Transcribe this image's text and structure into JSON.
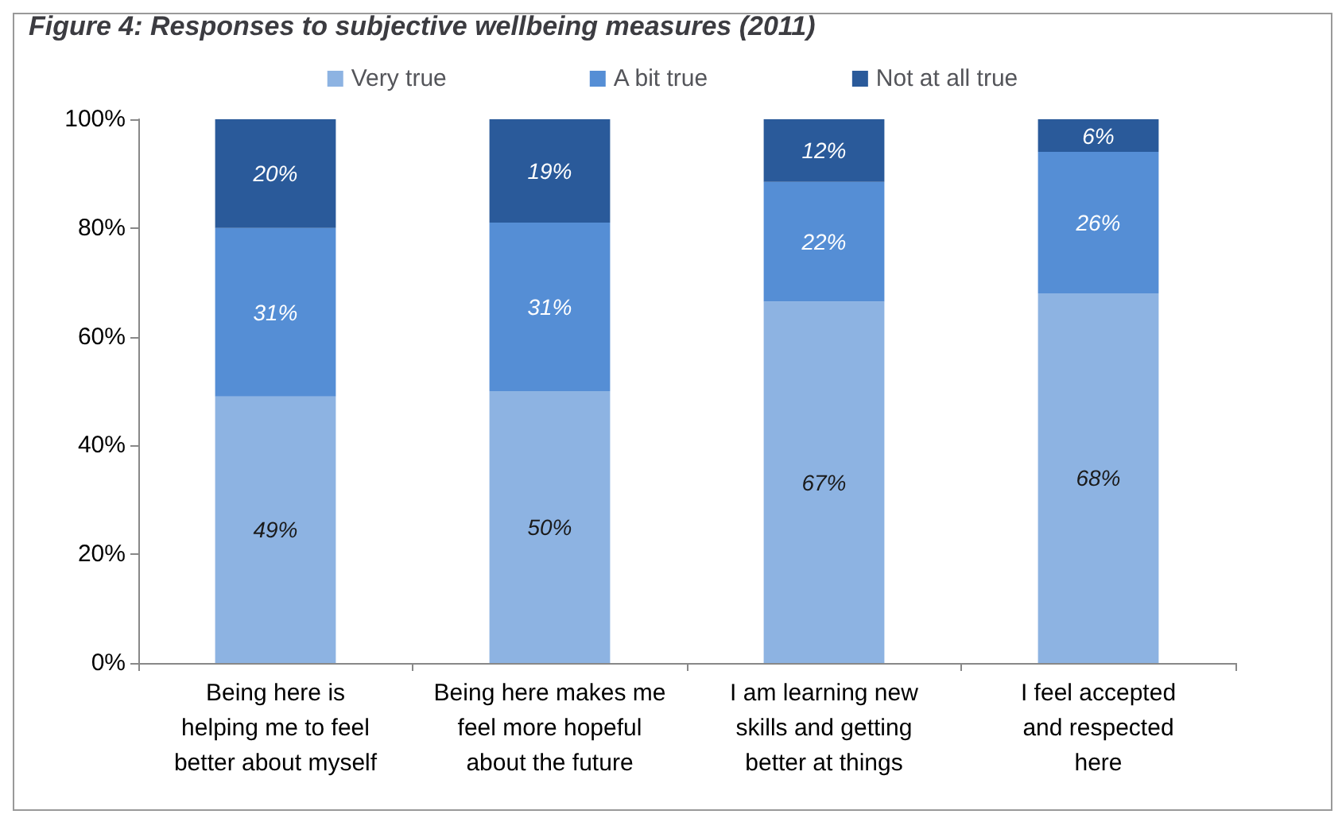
{
  "chart_data": {
    "type": "bar",
    "stacked": true,
    "title": "Figure 4: Responses to subjective wellbeing measures (2011)",
    "categories": [
      "Being here is\nhelping me to feel\nbetter about myself",
      "Being here makes me\nfeel more hopeful\nabout the future",
      "I am learning new\nskills and getting\nbetter at things",
      "I feel accepted\nand respected\nhere"
    ],
    "series": [
      {
        "name": "Very true",
        "color": "#8db3e2",
        "values": [
          49,
          50,
          66.5,
          68
        ],
        "value_labels": [
          "49%",
          "50%",
          "67%",
          "68%"
        ]
      },
      {
        "name": "A bit true",
        "color": "#558ed5",
        "values": [
          31,
          31,
          22,
          26
        ],
        "value_labels": [
          "31%",
          "31%",
          "22%",
          "26%"
        ]
      },
      {
        "name": "Not at all true",
        "color": "#2a5a9a",
        "values": [
          20,
          19,
          11.5,
          6
        ],
        "value_labels": [
          "20%",
          "19%",
          "12%",
          "6%"
        ]
      }
    ],
    "ylim": [
      0,
      100
    ],
    "yticks": [
      {
        "value": 0,
        "label": "0%"
      },
      {
        "value": 20,
        "label": "20%"
      },
      {
        "value": 40,
        "label": "40%"
      },
      {
        "value": 60,
        "label": "60%"
      },
      {
        "value": 80,
        "label": "80%"
      },
      {
        "value": 100,
        "label": "100%"
      }
    ],
    "grid": false,
    "legend": "top"
  }
}
